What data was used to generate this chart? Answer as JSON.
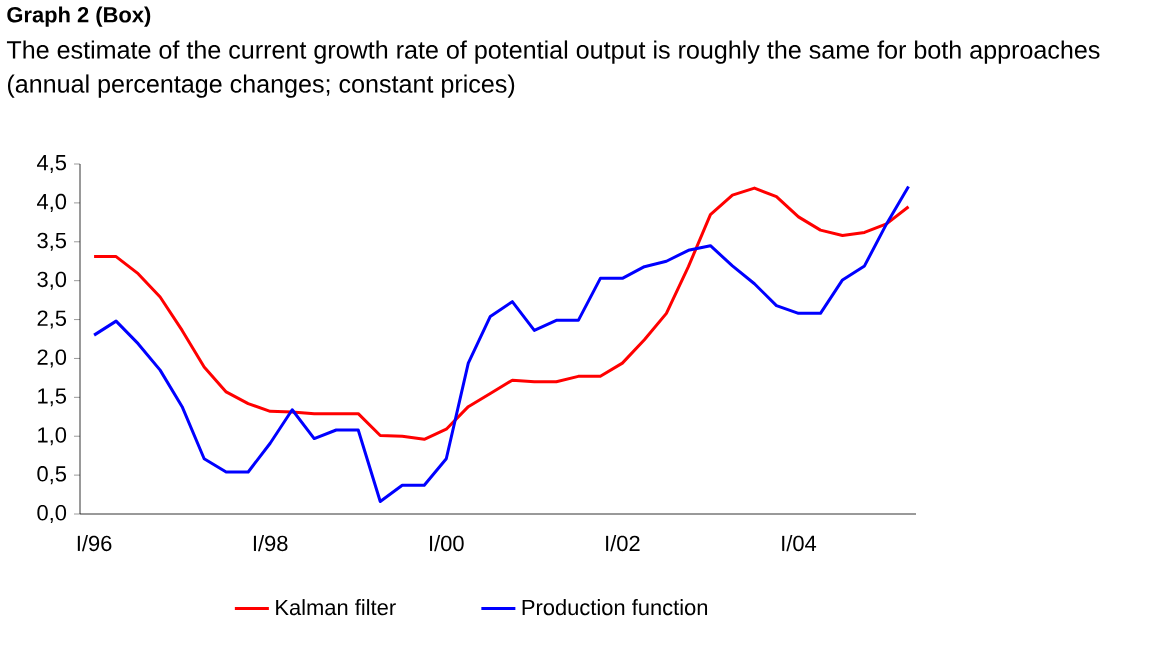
{
  "chart_data": {
    "type": "line",
    "title": "Graph 2 (Box)",
    "subtitle": "The estimate of the current growth rate of potential output is roughly the same for both approaches",
    "annotations": [
      "(annual percentage changes; constant prices)"
    ],
    "categories": [
      "I/96",
      null,
      null,
      null,
      null,
      null,
      null,
      null,
      "I/98",
      null,
      null,
      null,
      null,
      null,
      null,
      null,
      "I/00",
      null,
      null,
      null,
      null,
      null,
      null,
      null,
      "I/02",
      null,
      null,
      null,
      null,
      null,
      null,
      null,
      "I/04",
      null,
      null,
      null,
      null,
      null
    ],
    "series": [
      {
        "name": "Kalman filter",
        "color": "#ff0000",
        "values": [
          3.31,
          3.31,
          3.09,
          2.79,
          2.36,
          1.89,
          1.57,
          1.42,
          1.32,
          1.31,
          1.29,
          1.29,
          1.29,
          1.01,
          1.0,
          0.96,
          1.09,
          1.38,
          1.55,
          1.72,
          1.7,
          1.7,
          1.77,
          1.77,
          1.94,
          2.24,
          2.58,
          3.18,
          3.85,
          4.1,
          4.19,
          4.08,
          3.82,
          3.65,
          3.58,
          3.62,
          3.73,
          3.95
        ]
      },
      {
        "name": "Production function",
        "color": "#0000ff",
        "values": [
          2.3,
          2.48,
          2.19,
          1.85,
          1.38,
          0.71,
          0.54,
          0.54,
          0.91,
          1.34,
          0.97,
          1.08,
          1.08,
          0.16,
          0.37,
          0.37,
          0.71,
          1.94,
          2.54,
          2.73,
          2.36,
          2.49,
          2.49,
          3.03,
          3.03,
          3.18,
          3.25,
          3.39,
          3.45,
          3.19,
          2.96,
          2.68,
          2.58,
          2.58,
          3.01,
          3.19,
          3.73,
          4.21
        ]
      }
    ],
    "ylim": [
      0,
      4.5
    ],
    "yticks": [
      {
        "value": 0,
        "label": "0,0"
      },
      {
        "value": 0.5,
        "label": "0,5"
      },
      {
        "value": 1,
        "label": "1,0"
      },
      {
        "value": 1.5,
        "label": "1,5"
      },
      {
        "value": 2,
        "label": "2,0"
      },
      {
        "value": 2.5,
        "label": "2,5"
      },
      {
        "value": 3,
        "label": "3,0"
      },
      {
        "value": 3.5,
        "label": "3,5"
      },
      {
        "value": 4,
        "label": "4,0"
      },
      {
        "value": 4.5,
        "label": "4,5"
      }
    ],
    "legend": "bottom",
    "grid": false,
    "marker": "none",
    "line_style": "solid"
  }
}
